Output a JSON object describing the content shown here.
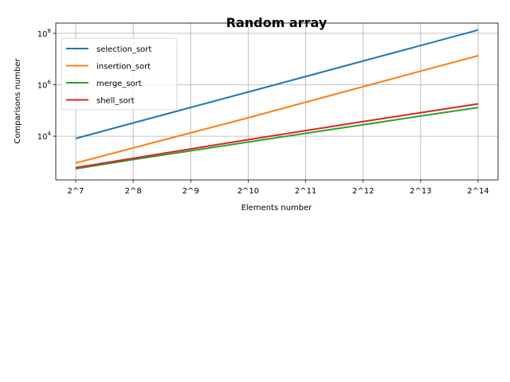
{
  "chart_data": {
    "type": "line",
    "title": "Random array",
    "xlabel": "Elements number",
    "ylabel": "Comparisons number",
    "yscale": "log",
    "grid": true,
    "legend_position": "top-left",
    "categories": [
      "2^7",
      "2^8",
      "2^9",
      "2^10",
      "2^11",
      "2^12",
      "2^13",
      "2^14"
    ],
    "x": [
      128,
      256,
      512,
      1024,
      2048,
      4096,
      8192,
      16384
    ],
    "y_ticks": [
      {
        "value": 10000,
        "base": "10",
        "exp": "4"
      },
      {
        "value": 1000000,
        "base": "10",
        "exp": "6"
      },
      {
        "value": 100000000,
        "base": "10",
        "exp": "8"
      }
    ],
    "ylim": [
      200,
      250000000
    ],
    "series": [
      {
        "name": "selection_sort",
        "color": "#1f77b4",
        "values": [
          8128,
          32640,
          130816,
          523776,
          2096128,
          8386560,
          33550336,
          134209536
        ]
      },
      {
        "name": "insertion_sort",
        "color": "#ff7f0e",
        "values": [
          900,
          3500,
          13500,
          52000,
          210000,
          840000,
          3400000,
          13500000
        ]
      },
      {
        "name": "merge_sort",
        "color": "#2ca02c",
        "values": [
          540,
          1230,
          2700,
          5900,
          12900,
          28000,
          61000,
          130000
        ]
      },
      {
        "name": "shell_sort",
        "color": "#d62728",
        "values": [
          600,
          1380,
          3200,
          7300,
          16500,
          37000,
          82000,
          180000
        ]
      }
    ]
  }
}
